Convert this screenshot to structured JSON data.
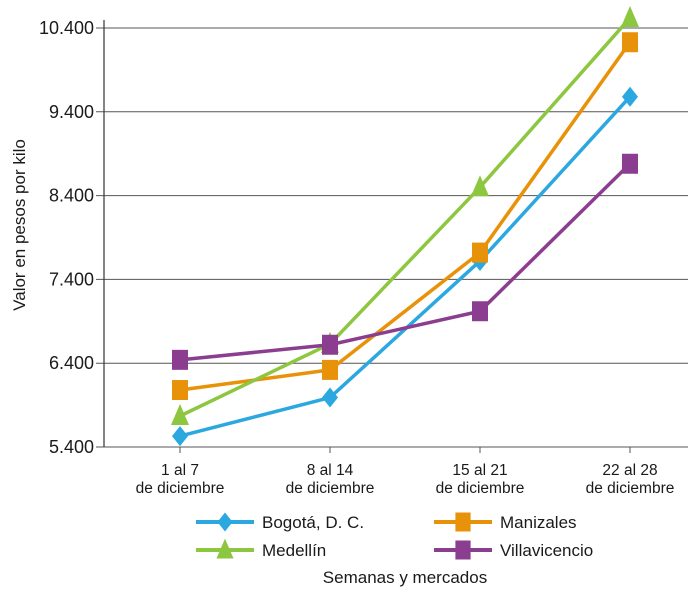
{
  "chart_data": {
    "type": "line",
    "title": "",
    "xlabel": "Semanas y mercados",
    "ylabel": "Valor en pesos por kilo",
    "ylim": [
      5400,
      10400
    ],
    "yticks": [
      5400,
      6400,
      7400,
      8400,
      9400,
      10400
    ],
    "ytick_labels": [
      "5.400",
      "6.400",
      "7.400",
      "8.400",
      "9.400",
      "10.400"
    ],
    "categories": [
      [
        "1 al 7",
        "de diciembre"
      ],
      [
        "8 al 14",
        "de diciembre"
      ],
      [
        "15 al 21",
        "de diciembre"
      ],
      [
        "22 al 28",
        "de diciembre"
      ]
    ],
    "grid": "horizontal",
    "legend_position": "bottom",
    "series": [
      {
        "name": "Bogotá, D. C.",
        "color": "#2ba8e0",
        "marker": "diamond",
        "values": [
          5530,
          5990,
          7620,
          9580
        ]
      },
      {
        "name": "Manizales",
        "color": "#e8920a",
        "marker": "square",
        "values": [
          6080,
          6320,
          7720,
          10230
        ]
      },
      {
        "name": "Medellín",
        "color": "#8dc63f",
        "marker": "triangle",
        "values": [
          5770,
          6630,
          8500,
          10520
        ]
      },
      {
        "name": "Villavicencio",
        "color": "#8b3e8f",
        "marker": "square",
        "values": [
          6440,
          6620,
          7020,
          8780
        ]
      }
    ]
  }
}
